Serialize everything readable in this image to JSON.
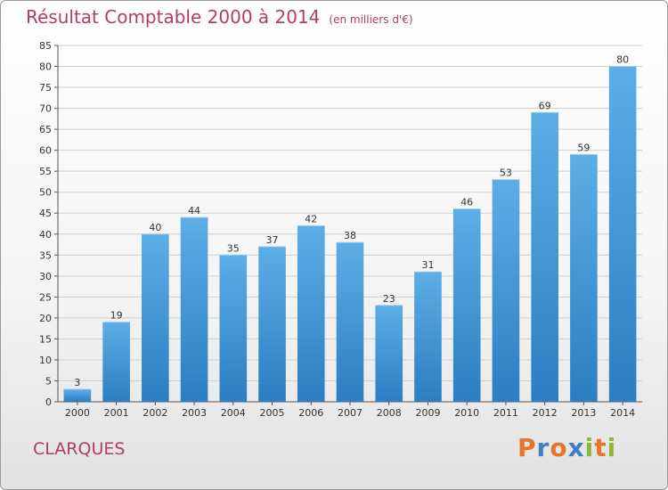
{
  "chart_data": {
    "type": "bar",
    "title": "Résultat Comptable 2000 à 2014",
    "unit_note": "(en milliers d'€)",
    "categories": [
      "2000",
      "2001",
      "2002",
      "2003",
      "2004",
      "2005",
      "2006",
      "2007",
      "2008",
      "2009",
      "2010",
      "2011",
      "2012",
      "2013",
      "2014"
    ],
    "values": [
      3,
      19,
      40,
      44,
      35,
      37,
      42,
      38,
      23,
      31,
      46,
      53,
      69,
      59,
      80
    ],
    "yticks": [
      0,
      5,
      10,
      15,
      20,
      25,
      30,
      35,
      40,
      45,
      50,
      55,
      60,
      65,
      70,
      75,
      80,
      85
    ],
    "ylim": [
      0,
      85
    ],
    "grid": true,
    "colors": {
      "bar_top": "#5dade6",
      "bar_bottom": "#2b7ec1",
      "title": "#b13d6a"
    }
  },
  "place_name": "CLARQUES",
  "logo": {
    "text": "Proxiti",
    "letter_colors": [
      "#e8742a",
      "#3d7fc8",
      "#e8742a",
      "#3d7fc8",
      "#8cb83a",
      "#e8742a",
      "#8cb83a"
    ]
  }
}
